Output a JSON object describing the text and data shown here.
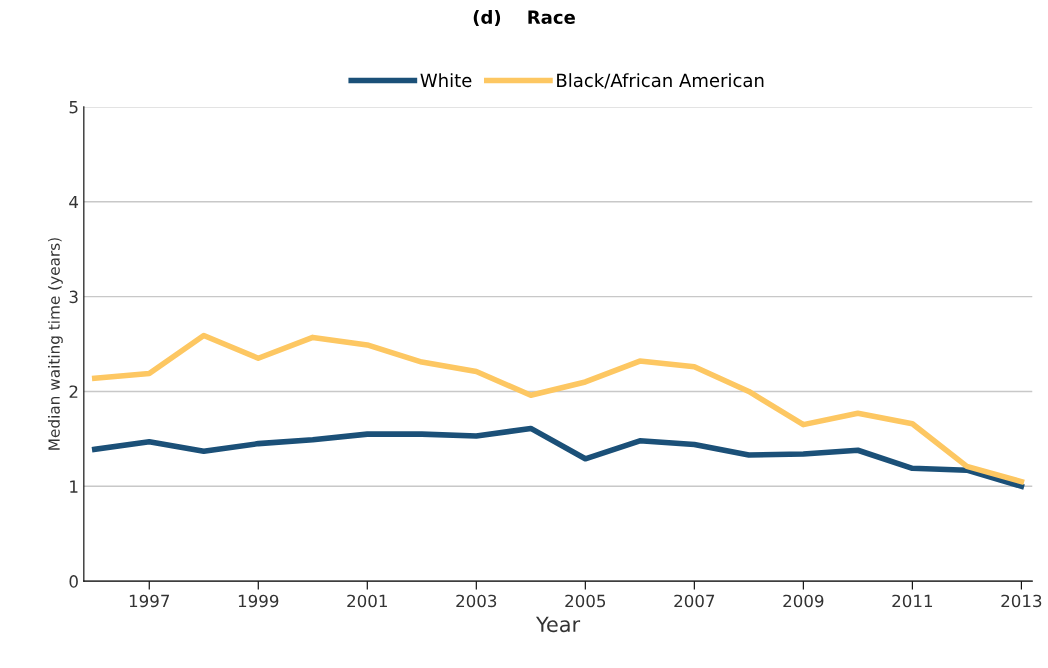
{
  "chart_data": {
    "type": "line",
    "title": "(d)    Race",
    "xlabel": "Year",
    "ylabel": "Median waiting time (years)",
    "x": [
      1996,
      1997,
      1998,
      1999,
      2000,
      2001,
      2002,
      2003,
      2004,
      2005,
      2006,
      2007,
      2008,
      2009,
      2010,
      2011,
      2012,
      2013
    ],
    "series": [
      {
        "name": "White",
        "color": "#1b5078",
        "values": [
          1.39,
          1.47,
          1.37,
          1.45,
          1.49,
          1.55,
          1.55,
          1.53,
          1.61,
          1.29,
          1.48,
          1.44,
          1.33,
          1.34,
          1.38,
          1.19,
          1.17,
          1.0
        ]
      },
      {
        "name": "Black/African American",
        "color": "#fdc762",
        "values": [
          2.14,
          2.19,
          2.59,
          2.35,
          2.57,
          2.49,
          2.31,
          2.21,
          1.96,
          2.1,
          2.32,
          2.26,
          2.0,
          1.65,
          1.77,
          1.66,
          1.21,
          1.05
        ]
      }
    ],
    "xlim": [
      1995.8,
      2013.2
    ],
    "xticks": [
      1997,
      1999,
      2001,
      2003,
      2005,
      2007,
      2009,
      2011,
      2013
    ],
    "ylim": [
      0,
      5
    ],
    "yticks": [
      0,
      1,
      2,
      3,
      4,
      5
    ],
    "grid": "y",
    "legend": "top",
    "marker": "none",
    "line_style": "solid"
  }
}
